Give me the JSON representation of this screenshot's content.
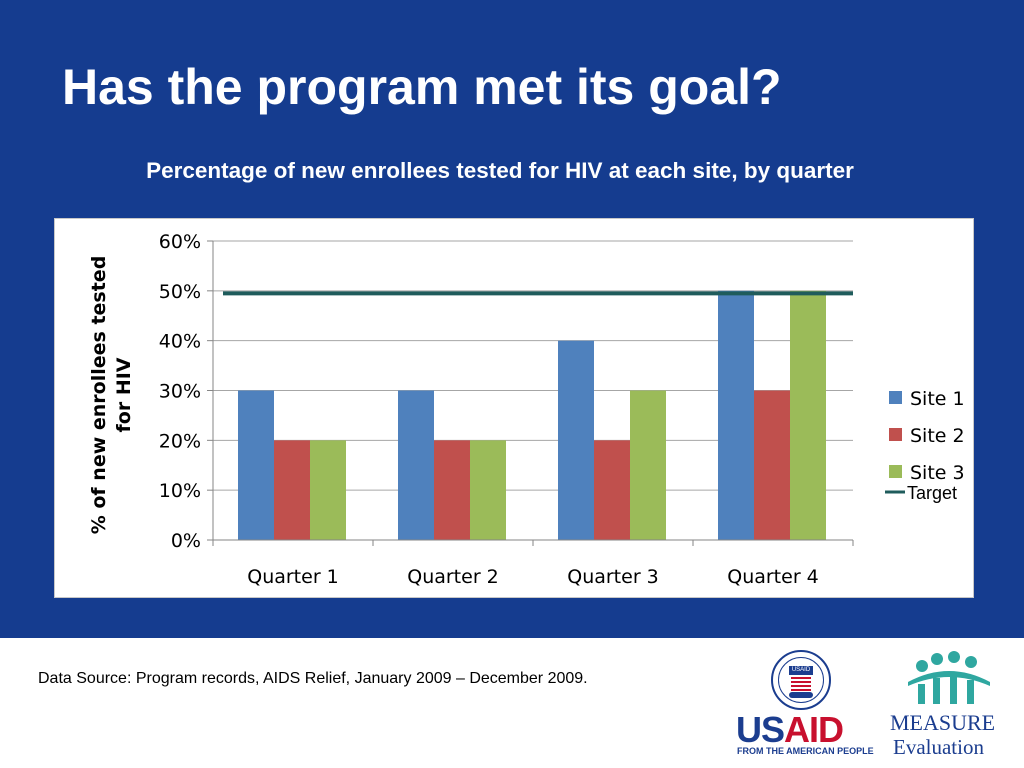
{
  "slide": {
    "title": "Has the program met its goal?",
    "footer_source": "Data Source: Program records, AIDS Relief, January 2009 – December 2009."
  },
  "logos": {
    "usaid_us": "US",
    "usaid_aid": "AID",
    "usaid_tagline": "FROM THE AMERICAN PEOPLE",
    "usaid_seal_banner": "USAID",
    "measure_line1": "MEASURE",
    "measure_line2": "Evaluation"
  },
  "colors": {
    "background": "#153c8f",
    "site1": "#4f81bd",
    "site2": "#c0504d",
    "site3": "#9bbb59",
    "target": "#1f5c5c"
  },
  "chart_data": {
    "type": "bar",
    "title": "Percentage of new enrollees tested for HIV at each site, by quarter",
    "ylabel": "%  of new enrollees  tested for HIV",
    "xlabel": "",
    "categories": [
      "Quarter 1",
      "Quarter 2",
      "Quarter 3",
      "Quarter 4"
    ],
    "series": [
      {
        "name": "Site 1",
        "values": [
          30,
          30,
          40,
          50
        ]
      },
      {
        "name": "Site 2",
        "values": [
          20,
          20,
          20,
          30
        ]
      },
      {
        "name": "Site 3",
        "values": [
          20,
          20,
          30,
          50
        ]
      }
    ],
    "target": {
      "name": "Target",
      "value": 49.5
    },
    "ylim": [
      0,
      60
    ],
    "yticks": [
      "0%",
      "10%",
      "20%",
      "30%",
      "40%",
      "50%",
      "60%"
    ],
    "grid": true,
    "legend_position": "right"
  }
}
